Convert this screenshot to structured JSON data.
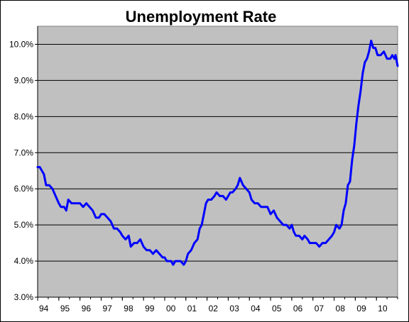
{
  "chart_data": {
    "type": "line",
    "title": "Unemployment Rate",
    "xlabel": "",
    "ylabel": "",
    "ylim": [
      3.0,
      10.5
    ],
    "xlim": [
      1994.0,
      2011.0
    ],
    "grid": "horizontal",
    "legend": "none",
    "y_ticks": [
      {
        "value": 3.0,
        "label": "3.0%"
      },
      {
        "value": 4.0,
        "label": "4.0%"
      },
      {
        "value": 5.0,
        "label": "5.0%"
      },
      {
        "value": 6.0,
        "label": "6.0%"
      },
      {
        "value": 7.0,
        "label": "7.0%"
      },
      {
        "value": 8.0,
        "label": "8.0%"
      },
      {
        "value": 9.0,
        "label": "9.0%"
      },
      {
        "value": 10.0,
        "label": "10.0%"
      }
    ],
    "x_ticks": [
      {
        "value": 1994,
        "label": "94"
      },
      {
        "value": 1995,
        "label": "95"
      },
      {
        "value": 1996,
        "label": "96"
      },
      {
        "value": 1997,
        "label": "97"
      },
      {
        "value": 1998,
        "label": "98"
      },
      {
        "value": 1999,
        "label": "99"
      },
      {
        "value": 2000,
        "label": "00"
      },
      {
        "value": 2001,
        "label": "01"
      },
      {
        "value": 2002,
        "label": "02"
      },
      {
        "value": 2003,
        "label": "03"
      },
      {
        "value": 2004,
        "label": "04"
      },
      {
        "value": 2005,
        "label": "05"
      },
      {
        "value": 2006,
        "label": "06"
      },
      {
        "value": 2007,
        "label": "07"
      },
      {
        "value": 2008,
        "label": "08"
      },
      {
        "value": 2009,
        "label": "09"
      },
      {
        "value": 2010,
        "label": "10"
      }
    ],
    "series": [
      {
        "color": "#0000ff",
        "points": [
          [
            1994.0,
            6.6
          ],
          [
            1994.1,
            6.6
          ],
          [
            1994.2,
            6.5
          ],
          [
            1994.3,
            6.4
          ],
          [
            1994.4,
            6.1
          ],
          [
            1994.55,
            6.1
          ],
          [
            1994.7,
            6.0
          ],
          [
            1994.85,
            5.8
          ],
          [
            1995.0,
            5.6
          ],
          [
            1995.1,
            5.5
          ],
          [
            1995.25,
            5.5
          ],
          [
            1995.35,
            5.4
          ],
          [
            1995.45,
            5.7
          ],
          [
            1995.6,
            5.6
          ],
          [
            1995.75,
            5.6
          ],
          [
            1995.9,
            5.6
          ],
          [
            1996.0,
            5.6
          ],
          [
            1996.15,
            5.5
          ],
          [
            1996.3,
            5.6
          ],
          [
            1996.45,
            5.5
          ],
          [
            1996.6,
            5.4
          ],
          [
            1996.75,
            5.2
          ],
          [
            1996.9,
            5.2
          ],
          [
            1997.0,
            5.3
          ],
          [
            1997.15,
            5.3
          ],
          [
            1997.3,
            5.2
          ],
          [
            1997.45,
            5.1
          ],
          [
            1997.6,
            4.9
          ],
          [
            1997.75,
            4.9
          ],
          [
            1997.9,
            4.8
          ],
          [
            1998.0,
            4.7
          ],
          [
            1998.15,
            4.6
          ],
          [
            1998.3,
            4.7
          ],
          [
            1998.4,
            4.4
          ],
          [
            1998.55,
            4.5
          ],
          [
            1998.7,
            4.5
          ],
          [
            1998.85,
            4.6
          ],
          [
            1999.0,
            4.4
          ],
          [
            1999.15,
            4.3
          ],
          [
            1999.3,
            4.3
          ],
          [
            1999.45,
            4.2
          ],
          [
            1999.6,
            4.3
          ],
          [
            1999.75,
            4.2
          ],
          [
            1999.9,
            4.1
          ],
          [
            2000.0,
            4.1
          ],
          [
            2000.1,
            4.0
          ],
          [
            2000.2,
            4.0
          ],
          [
            2000.3,
            4.0
          ],
          [
            2000.4,
            3.9
          ],
          [
            2000.5,
            4.0
          ],
          [
            2000.6,
            4.0
          ],
          [
            2000.75,
            4.0
          ],
          [
            2000.9,
            3.9
          ],
          [
            2001.0,
            4.0
          ],
          [
            2001.1,
            4.2
          ],
          [
            2001.25,
            4.3
          ],
          [
            2001.4,
            4.5
          ],
          [
            2001.55,
            4.6
          ],
          [
            2001.65,
            4.9
          ],
          [
            2001.75,
            5.0
          ],
          [
            2001.85,
            5.3
          ],
          [
            2001.95,
            5.6
          ],
          [
            2002.05,
            5.7
          ],
          [
            2002.2,
            5.7
          ],
          [
            2002.35,
            5.8
          ],
          [
            2002.45,
            5.9
          ],
          [
            2002.6,
            5.8
          ],
          [
            2002.75,
            5.8
          ],
          [
            2002.9,
            5.7
          ],
          [
            2003.0,
            5.8
          ],
          [
            2003.1,
            5.9
          ],
          [
            2003.2,
            5.9
          ],
          [
            2003.35,
            6.0
          ],
          [
            2003.45,
            6.1
          ],
          [
            2003.55,
            6.3
          ],
          [
            2003.7,
            6.1
          ],
          [
            2003.85,
            6.0
          ],
          [
            2004.0,
            5.9
          ],
          [
            2004.1,
            5.7
          ],
          [
            2004.25,
            5.6
          ],
          [
            2004.4,
            5.6
          ],
          [
            2004.55,
            5.5
          ],
          [
            2004.7,
            5.5
          ],
          [
            2004.85,
            5.5
          ],
          [
            2005.0,
            5.3
          ],
          [
            2005.15,
            5.4
          ],
          [
            2005.3,
            5.2
          ],
          [
            2005.45,
            5.1
          ],
          [
            2005.6,
            5.0
          ],
          [
            2005.75,
            5.0
          ],
          [
            2005.9,
            4.9
          ],
          [
            2006.0,
            5.0
          ],
          [
            2006.1,
            4.8
          ],
          [
            2006.2,
            4.7
          ],
          [
            2006.35,
            4.7
          ],
          [
            2006.5,
            4.6
          ],
          [
            2006.6,
            4.7
          ],
          [
            2006.75,
            4.6
          ],
          [
            2006.85,
            4.5
          ],
          [
            2007.0,
            4.5
          ],
          [
            2007.15,
            4.5
          ],
          [
            2007.3,
            4.4
          ],
          [
            2007.45,
            4.5
          ],
          [
            2007.6,
            4.5
          ],
          [
            2007.75,
            4.6
          ],
          [
            2007.9,
            4.7
          ],
          [
            2008.0,
            4.8
          ],
          [
            2008.1,
            5.0
          ],
          [
            2008.25,
            4.9
          ],
          [
            2008.35,
            5.0
          ],
          [
            2008.45,
            5.4
          ],
          [
            2008.55,
            5.6
          ],
          [
            2008.65,
            6.1
          ],
          [
            2008.75,
            6.2
          ],
          [
            2008.85,
            6.8
          ],
          [
            2008.95,
            7.2
          ],
          [
            2009.05,
            7.8
          ],
          [
            2009.15,
            8.3
          ],
          [
            2009.25,
            8.7
          ],
          [
            2009.35,
            9.2
          ],
          [
            2009.45,
            9.5
          ],
          [
            2009.55,
            9.6
          ],
          [
            2009.65,
            9.8
          ],
          [
            2009.75,
            10.1
          ],
          [
            2009.85,
            9.9
          ],
          [
            2009.95,
            9.9
          ],
          [
            2010.05,
            9.7
          ],
          [
            2010.2,
            9.7
          ],
          [
            2010.35,
            9.8
          ],
          [
            2010.5,
            9.6
          ],
          [
            2010.65,
            9.6
          ],
          [
            2010.75,
            9.7
          ],
          [
            2010.85,
            9.6
          ],
          [
            2010.9,
            9.7
          ],
          [
            2011.0,
            9.4
          ]
        ]
      }
    ]
  }
}
